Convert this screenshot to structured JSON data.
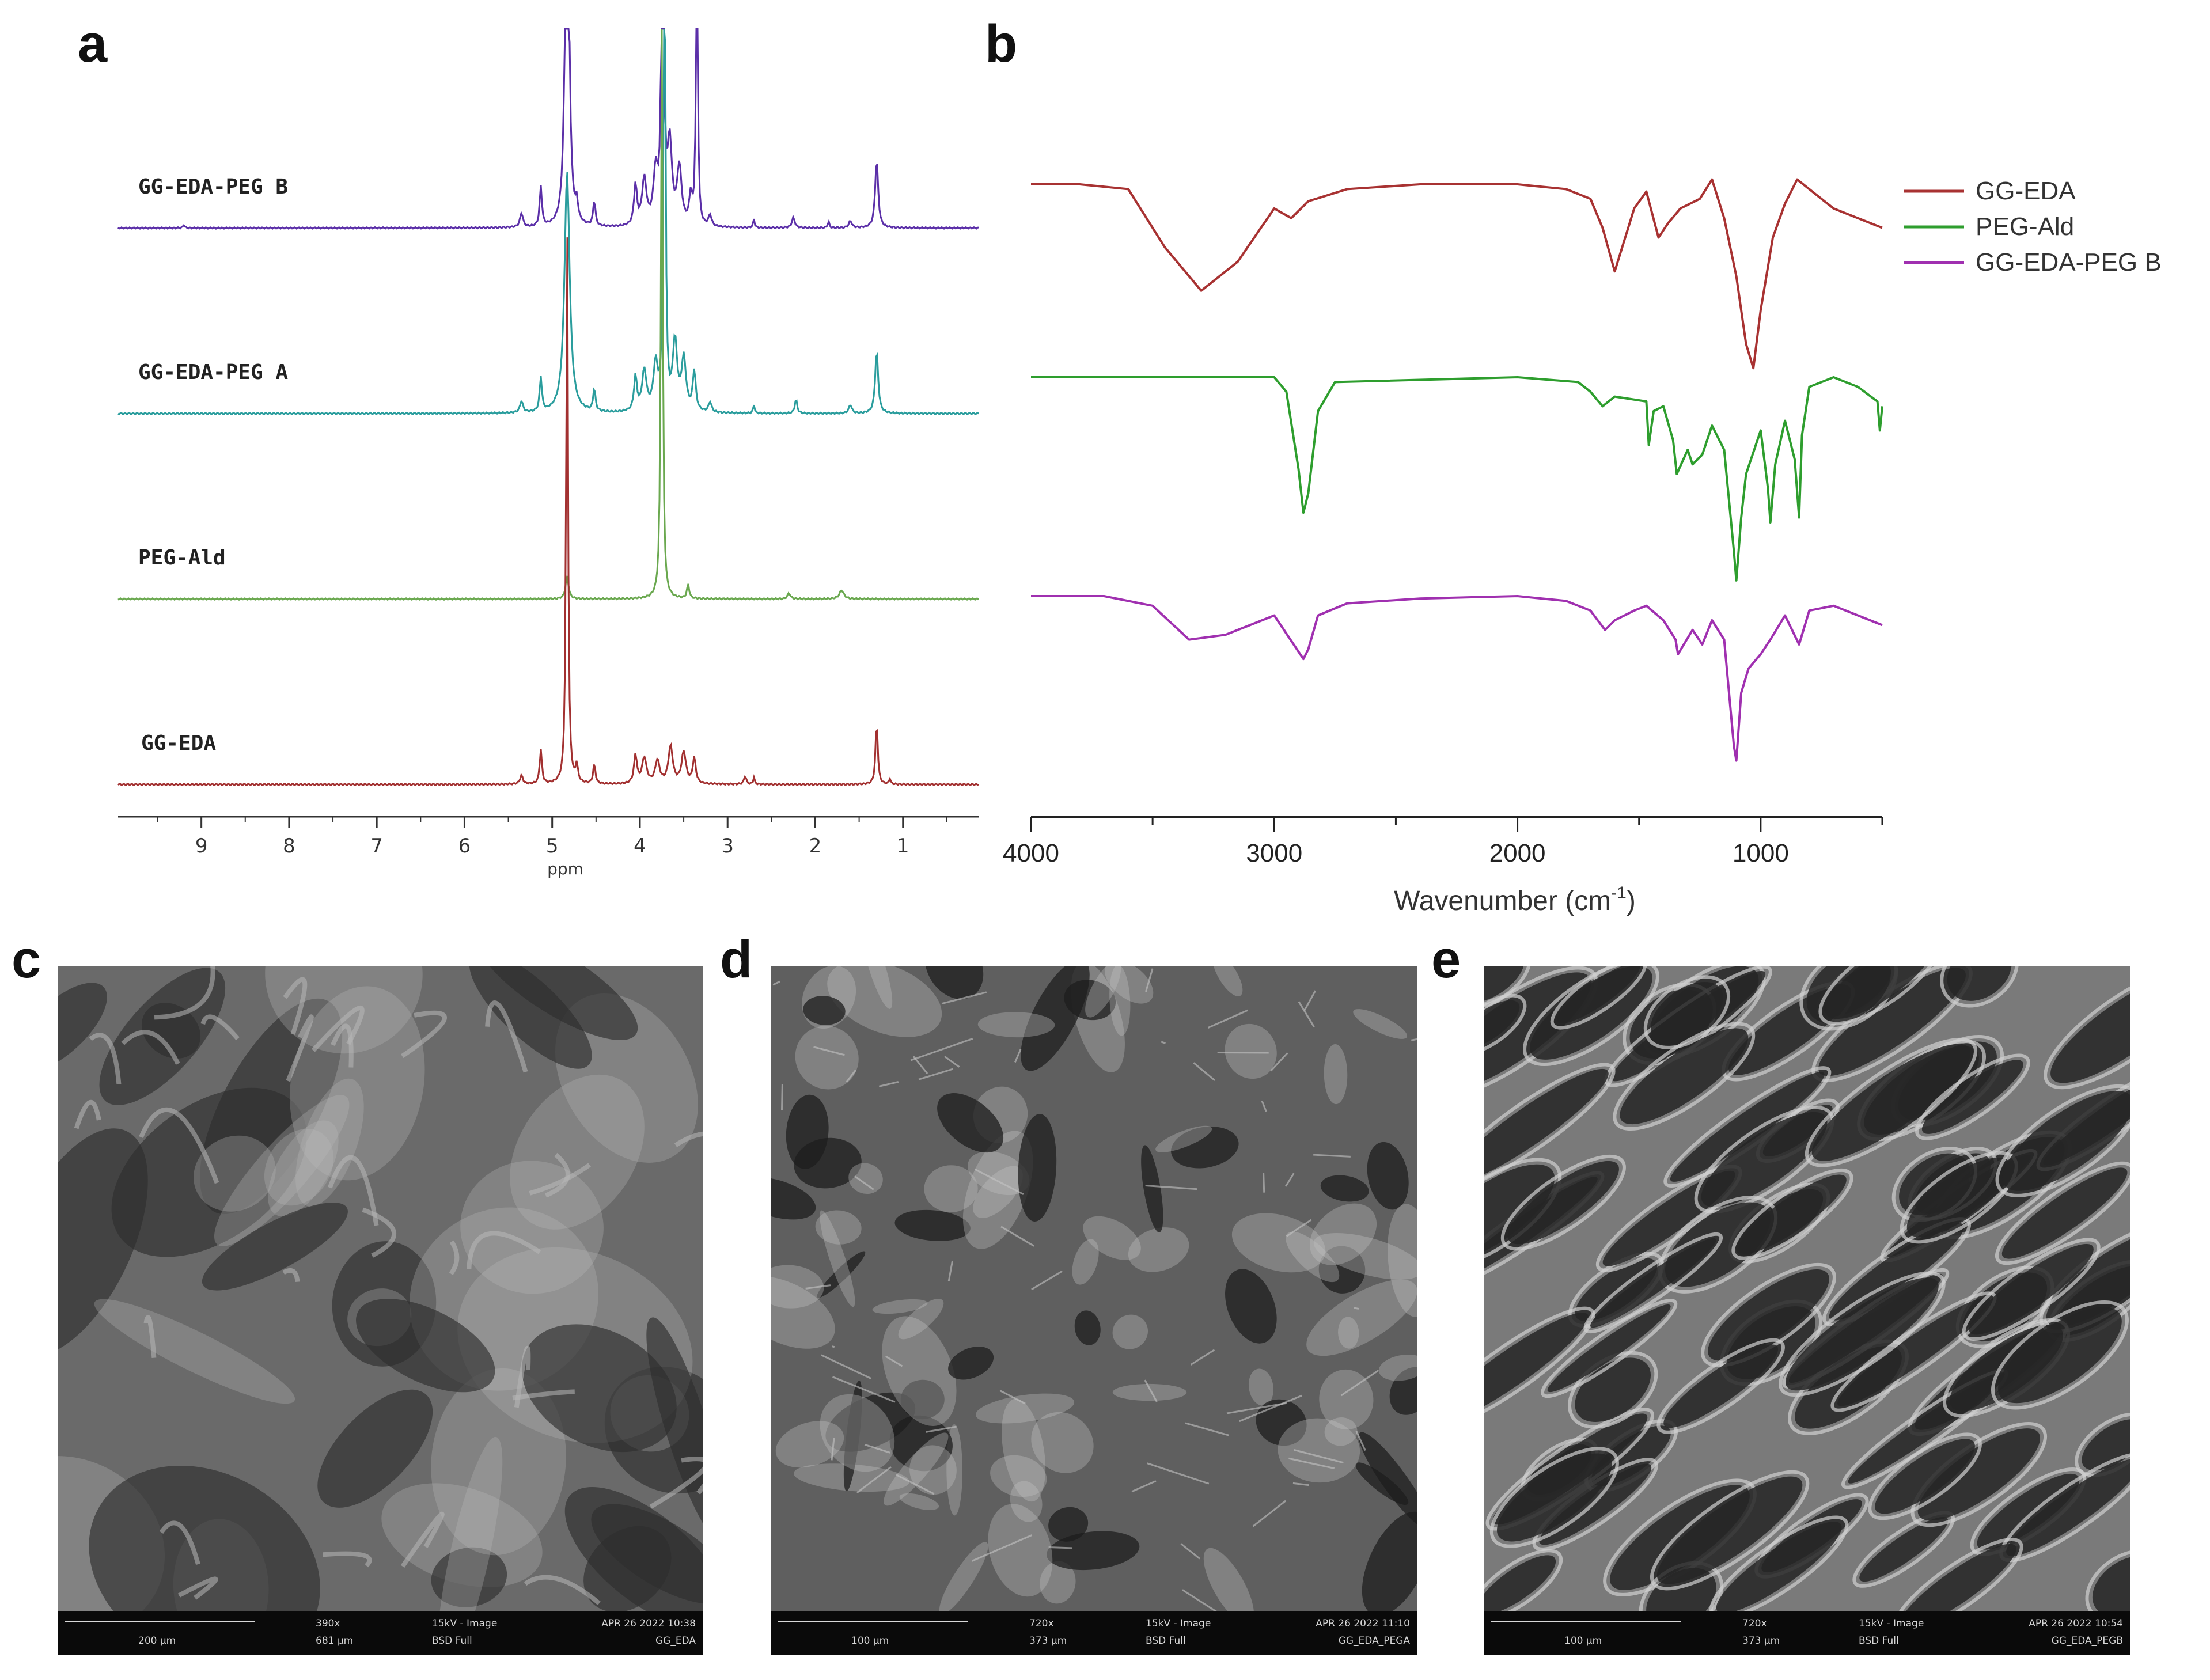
{
  "panels": {
    "a": "a",
    "b": "b",
    "c": "c",
    "d": "d",
    "e": "e"
  },
  "nmr": {
    "xlabel": "ppm",
    "ticks": [
      "9",
      "8",
      "7",
      "6",
      "5",
      "4",
      "3",
      "2",
      "1"
    ],
    "spectra": [
      {
        "label": "GG-EDA-PEG B",
        "color": "#5b2fa8"
      },
      {
        "label": "GG-EDA-PEG A",
        "color": "#2a9d9d"
      },
      {
        "label": "PEG-Ald",
        "color": "#6aa84f"
      },
      {
        "label": "GG-EDA",
        "color": "#a23030"
      }
    ]
  },
  "chart_data": {
    "type": "line",
    "xlabel_main": "Wavenumber (cm",
    "xlabel_sup": "-1",
    "xlabel_end": ")",
    "xlim": [
      4000,
      500
    ],
    "ticks": [
      "4000",
      "3000",
      "2000",
      "1000"
    ],
    "series": [
      {
        "name": "GG-EDA",
        "color": "#a83232",
        "x": [
          4000,
          3800,
          3600,
          3450,
          3300,
          3150,
          3000,
          2930,
          2860,
          2700,
          2400,
          2000,
          1800,
          1700,
          1650,
          1600,
          1520,
          1470,
          1420,
          1380,
          1330,
          1250,
          1200,
          1150,
          1100,
          1060,
          1030,
          1000,
          950,
          900,
          850,
          800,
          700,
          600,
          500
        ],
        "y": [
          0,
          0,
          -2,
          -26,
          -44,
          -32,
          -10,
          -14,
          -7,
          -2,
          0,
          0,
          -2,
          -6,
          -18,
          -36,
          -10,
          -3,
          -22,
          -16,
          -10,
          -6,
          2,
          -14,
          -38,
          -66,
          -76,
          -52,
          -22,
          -8,
          2,
          -2,
          -10,
          -14,
          -18
        ]
      },
      {
        "name": "PEG-Ald",
        "color": "#2e9e2e",
        "x": [
          4000,
          3500,
          3000,
          2950,
          2900,
          2880,
          2860,
          2820,
          2750,
          2000,
          1750,
          1700,
          1650,
          1600,
          1470,
          1460,
          1440,
          1400,
          1360,
          1345,
          1300,
          1280,
          1240,
          1200,
          1150,
          1110,
          1100,
          1080,
          1060,
          1000,
          970,
          960,
          940,
          900,
          860,
          842,
          830,
          800,
          700,
          600,
          520,
          510,
          500
        ],
        "y": [
          0,
          0,
          0,
          -6,
          -38,
          -56,
          -48,
          -14,
          -2,
          0,
          -2,
          -6,
          -12,
          -8,
          -10,
          -28,
          -14,
          -12,
          -26,
          -40,
          -30,
          -36,
          -32,
          -20,
          -30,
          -72,
          -84,
          -58,
          -40,
          -22,
          -46,
          -60,
          -36,
          -18,
          -34,
          -58,
          -24,
          -4,
          0,
          -4,
          -10,
          -22,
          -12
        ]
      },
      {
        "name": "GG-EDA-PEG B",
        "color": "#a030b0",
        "x": [
          4000,
          3700,
          3500,
          3350,
          3200,
          3000,
          2920,
          2880,
          2860,
          2820,
          2700,
          2400,
          2000,
          1800,
          1700,
          1640,
          1600,
          1520,
          1470,
          1400,
          1350,
          1340,
          1280,
          1240,
          1200,
          1150,
          1110,
          1100,
          1080,
          1050,
          1000,
          960,
          900,
          842,
          800,
          700,
          600,
          500
        ],
        "y": [
          0,
          0,
          -4,
          -18,
          -16,
          -8,
          -20,
          -26,
          -22,
          -8,
          -3,
          -1,
          0,
          -2,
          -6,
          -14,
          -10,
          -6,
          -4,
          -10,
          -18,
          -24,
          -14,
          -20,
          -10,
          -18,
          -62,
          -68,
          -40,
          -30,
          -24,
          -18,
          -8,
          -20,
          -6,
          -4,
          -8,
          -12
        ]
      }
    ]
  },
  "sem": [
    {
      "scale": "200 μm",
      "mag": "390x",
      "fov": "681 μm",
      "kv": "15kV - Image",
      "det": "BSD Full",
      "date": "APR 26 2022 10:38",
      "name": "GG_EDA"
    },
    {
      "scale": "100 μm",
      "mag": "720x",
      "fov": "373 μm",
      "kv": "15kV - Image",
      "det": "BSD Full",
      "date": "APR 26 2022 11:10",
      "name": "GG_EDA_PEGA"
    },
    {
      "scale": "100 μm",
      "mag": "720x",
      "fov": "373 μm",
      "kv": "15kV - Image",
      "det": "BSD Full",
      "date": "APR 26 2022 10:54",
      "name": "GG_EDA_PEGB"
    }
  ]
}
